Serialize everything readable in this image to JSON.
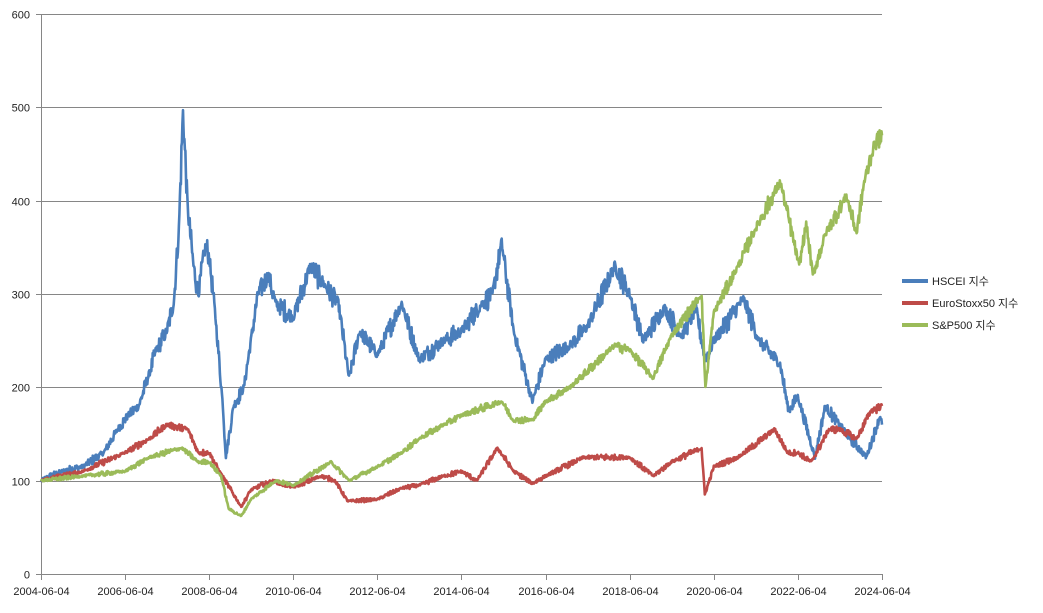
{
  "chart_data": {
    "type": "line",
    "title": "",
    "xlabel": "",
    "ylabel": "",
    "ylim": [
      0,
      600
    ],
    "yticks": [
      0,
      100,
      200,
      300,
      400,
      500,
      600
    ],
    "x_range": [
      "2004-06-04",
      "2024-06-04"
    ],
    "xticks": [
      "2004-06-04",
      "2006-06-04",
      "2008-06-04",
      "2010-06-04",
      "2012-06-04",
      "2014-06-04",
      "2016-06-04",
      "2018-06-04",
      "2020-06-04",
      "2022-06-04",
      "2024-06-04"
    ],
    "grid": true,
    "legend_position": "right",
    "series": [
      {
        "name": "HSCEI 지수",
        "color": "#4a7ebb",
        "points": [
          [
            "2004-06-04",
            100
          ],
          [
            "2004-12-01",
            110
          ],
          [
            "2005-06-01",
            115
          ],
          [
            "2005-12-01",
            130
          ],
          [
            "2006-04-01",
            155
          ],
          [
            "2006-07-01",
            170
          ],
          [
            "2006-10-01",
            180
          ],
          [
            "2007-01-01",
            215
          ],
          [
            "2007-03-01",
            240
          ],
          [
            "2007-06-01",
            260
          ],
          [
            "2007-08-01",
            290
          ],
          [
            "2007-09-15",
            370
          ],
          [
            "2007-10-20",
            495
          ],
          [
            "2007-12-01",
            390
          ],
          [
            "2008-01-20",
            330
          ],
          [
            "2008-03-01",
            300
          ],
          [
            "2008-05-01",
            350
          ],
          [
            "2008-06-04",
            340
          ],
          [
            "2008-08-01",
            270
          ],
          [
            "2008-10-01",
            180
          ],
          [
            "2008-10-27",
            125
          ],
          [
            "2009-01-01",
            180
          ],
          [
            "2009-04-01",
            200
          ],
          [
            "2009-06-01",
            250
          ],
          [
            "2009-08-01",
            300
          ],
          [
            "2009-11-01",
            320
          ],
          [
            "2010-01-01",
            290
          ],
          [
            "2010-06-04",
            275
          ],
          [
            "2010-11-01",
            330
          ],
          [
            "2011-03-01",
            310
          ],
          [
            "2011-07-01",
            290
          ],
          [
            "2011-10-01",
            210
          ],
          [
            "2012-01-01",
            260
          ],
          [
            "2012-06-04",
            235
          ],
          [
            "2013-01-01",
            290
          ],
          [
            "2013-06-01",
            230
          ],
          [
            "2014-01-01",
            250
          ],
          [
            "2014-06-04",
            260
          ],
          [
            "2014-12-01",
            290
          ],
          [
            "2015-03-01",
            300
          ],
          [
            "2015-05-20",
            355
          ],
          [
            "2015-09-01",
            260
          ],
          [
            "2016-02-10",
            185
          ],
          [
            "2016-06-04",
            230
          ],
          [
            "2017-01-01",
            245
          ],
          [
            "2017-06-01",
            265
          ],
          [
            "2018-01-26",
            330
          ],
          [
            "2018-06-04",
            300
          ],
          [
            "2018-10-01",
            250
          ],
          [
            "2019-04-01",
            285
          ],
          [
            "2019-09-01",
            255
          ],
          [
            "2020-01-01",
            285
          ],
          [
            "2020-03-20",
            230
          ],
          [
            "2020-06-04",
            250
          ],
          [
            "2021-02-15",
            295
          ],
          [
            "2021-07-01",
            250
          ],
          [
            "2022-01-01",
            225
          ],
          [
            "2022-03-15",
            175
          ],
          [
            "2022-06-04",
            190
          ],
          [
            "2022-10-31",
            125
          ],
          [
            "2023-01-27",
            180
          ],
          [
            "2023-06-01",
            160
          ],
          [
            "2024-01-20",
            125
          ],
          [
            "2024-05-20",
            170
          ],
          [
            "2024-06-04",
            160
          ]
        ]
      },
      {
        "name": "EuroStoxx50 지수",
        "color": "#be4b48",
        "points": [
          [
            "2004-06-04",
            100
          ],
          [
            "2005-06-01",
            110
          ],
          [
            "2006-06-04",
            130
          ],
          [
            "2007-01-01",
            145
          ],
          [
            "2007-06-01",
            160
          ],
          [
            "2007-12-01",
            155
          ],
          [
            "2008-03-01",
            130
          ],
          [
            "2008-06-04",
            130
          ],
          [
            "2008-09-01",
            110
          ],
          [
            "2009-03-09",
            72
          ],
          [
            "2009-06-01",
            90
          ],
          [
            "2009-12-01",
            100
          ],
          [
            "2010-06-04",
            93
          ],
          [
            "2011-02-01",
            105
          ],
          [
            "2011-06-01",
            100
          ],
          [
            "2011-09-20",
            78
          ],
          [
            "2012-06-04",
            80
          ],
          [
            "2013-01-01",
            92
          ],
          [
            "2013-06-01",
            95
          ],
          [
            "2014-01-01",
            105
          ],
          [
            "2014-06-04",
            110
          ],
          [
            "2014-10-15",
            100
          ],
          [
            "2015-04-13",
            135
          ],
          [
            "2015-09-01",
            110
          ],
          [
            "2016-02-10",
            97
          ],
          [
            "2016-06-04",
            105
          ],
          [
            "2017-05-01",
            125
          ],
          [
            "2018-06-04",
            125
          ],
          [
            "2018-12-27",
            105
          ],
          [
            "2019-06-01",
            120
          ],
          [
            "2020-02-19",
            135
          ],
          [
            "2020-03-18",
            85
          ],
          [
            "2020-06-04",
            115
          ],
          [
            "2021-01-01",
            125
          ],
          [
            "2021-11-15",
            155
          ],
          [
            "2022-03-07",
            130
          ],
          [
            "2022-06-04",
            130
          ],
          [
            "2022-09-29",
            120
          ],
          [
            "2023-03-01",
            155
          ],
          [
            "2023-06-01",
            155
          ],
          [
            "2023-10-27",
            145
          ],
          [
            "2024-03-01",
            175
          ],
          [
            "2024-06-04",
            180
          ]
        ]
      },
      {
        "name": "S&P500 지수",
        "color": "#9bbb59",
        "points": [
          [
            "2004-06-04",
            100
          ],
          [
            "2005-06-01",
            105
          ],
          [
            "2006-06-04",
            110
          ],
          [
            "2007-01-01",
            125
          ],
          [
            "2007-10-09",
            135
          ],
          [
            "2008-03-01",
            120
          ],
          [
            "2008-06-04",
            120
          ],
          [
            "2008-09-15",
            105
          ],
          [
            "2008-11-20",
            70
          ],
          [
            "2009-03-09",
            62
          ],
          [
            "2009-06-01",
            80
          ],
          [
            "2010-01-01",
            100
          ],
          [
            "2010-06-04",
            95
          ],
          [
            "2011-04-29",
            120
          ],
          [
            "2011-10-03",
            100
          ],
          [
            "2012-06-04",
            115
          ],
          [
            "2013-01-01",
            130
          ],
          [
            "2013-06-01",
            145
          ],
          [
            "2014-01-01",
            160
          ],
          [
            "2014-06-04",
            170
          ],
          [
            "2015-05-21",
            185
          ],
          [
            "2015-08-25",
            165
          ],
          [
            "2016-02-11",
            165
          ],
          [
            "2016-06-04",
            185
          ],
          [
            "2017-01-01",
            200
          ],
          [
            "2018-01-26",
            245
          ],
          [
            "2018-06-04",
            240
          ],
          [
            "2018-12-24",
            210
          ],
          [
            "2019-06-01",
            255
          ],
          [
            "2020-02-19",
            300
          ],
          [
            "2020-03-23",
            200
          ],
          [
            "2020-06-04",
            280
          ],
          [
            "2021-01-01",
            330
          ],
          [
            "2021-06-01",
            370
          ],
          [
            "2022-01-03",
            420
          ],
          [
            "2022-06-16",
            330
          ],
          [
            "2022-08-16",
            375
          ],
          [
            "2022-10-12",
            320
          ],
          [
            "2023-02-01",
            365
          ],
          [
            "2023-07-31",
            405
          ],
          [
            "2023-10-27",
            365
          ],
          [
            "2024-01-01",
            420
          ],
          [
            "2024-03-28",
            460
          ],
          [
            "2024-06-04",
            470
          ]
        ]
      }
    ]
  }
}
